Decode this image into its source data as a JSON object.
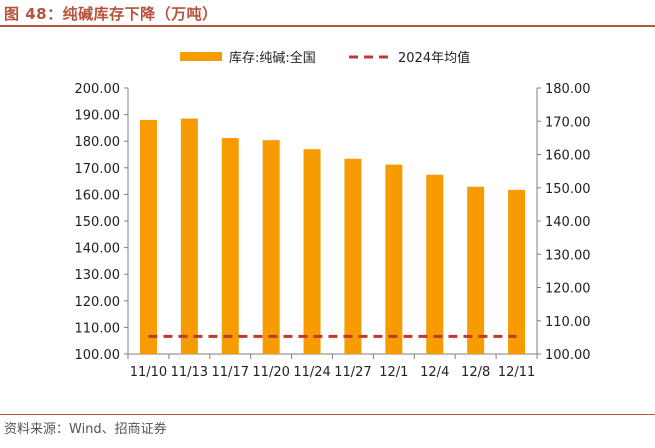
{
  "header": {
    "title": "图 48：纯碱库存下降（万吨）"
  },
  "footer": {
    "source": "资料来源：Wind、招商证券"
  },
  "chart_data": {
    "type": "bar",
    "categories": [
      "11/10",
      "11/13",
      "11/17",
      "11/20",
      "11/24",
      "11/27",
      "12/1",
      "12/4",
      "12/8",
      "12/11"
    ],
    "series": [
      {
        "name": "库存:纯碱:全国",
        "type": "bar",
        "axis": "left",
        "values": [
          188.0,
          188.5,
          181.2,
          180.4,
          177.0,
          173.4,
          171.2,
          167.4,
          162.9,
          161.7
        ],
        "color": "#f79c00"
      },
      {
        "name": "2024年均值",
        "type": "line",
        "style": "dashed",
        "axis": "right",
        "values": [
          105.3,
          105.3,
          105.3,
          105.3,
          105.3,
          105.3,
          105.3,
          105.3,
          105.3,
          105.3
        ],
        "color": "#c0392b"
      }
    ],
    "ylim_left": [
      100,
      200
    ],
    "yticks_left": [
      "100.00",
      "110.00",
      "120.00",
      "130.00",
      "140.00",
      "150.00",
      "160.00",
      "170.00",
      "180.00",
      "190.00",
      "200.00"
    ],
    "ylim_right": [
      100,
      180
    ],
    "yticks_right": [
      "100.00",
      "110.00",
      "120.00",
      "130.00",
      "140.00",
      "150.00",
      "160.00",
      "170.00",
      "180.00"
    ],
    "legend": "top",
    "grid": false
  }
}
